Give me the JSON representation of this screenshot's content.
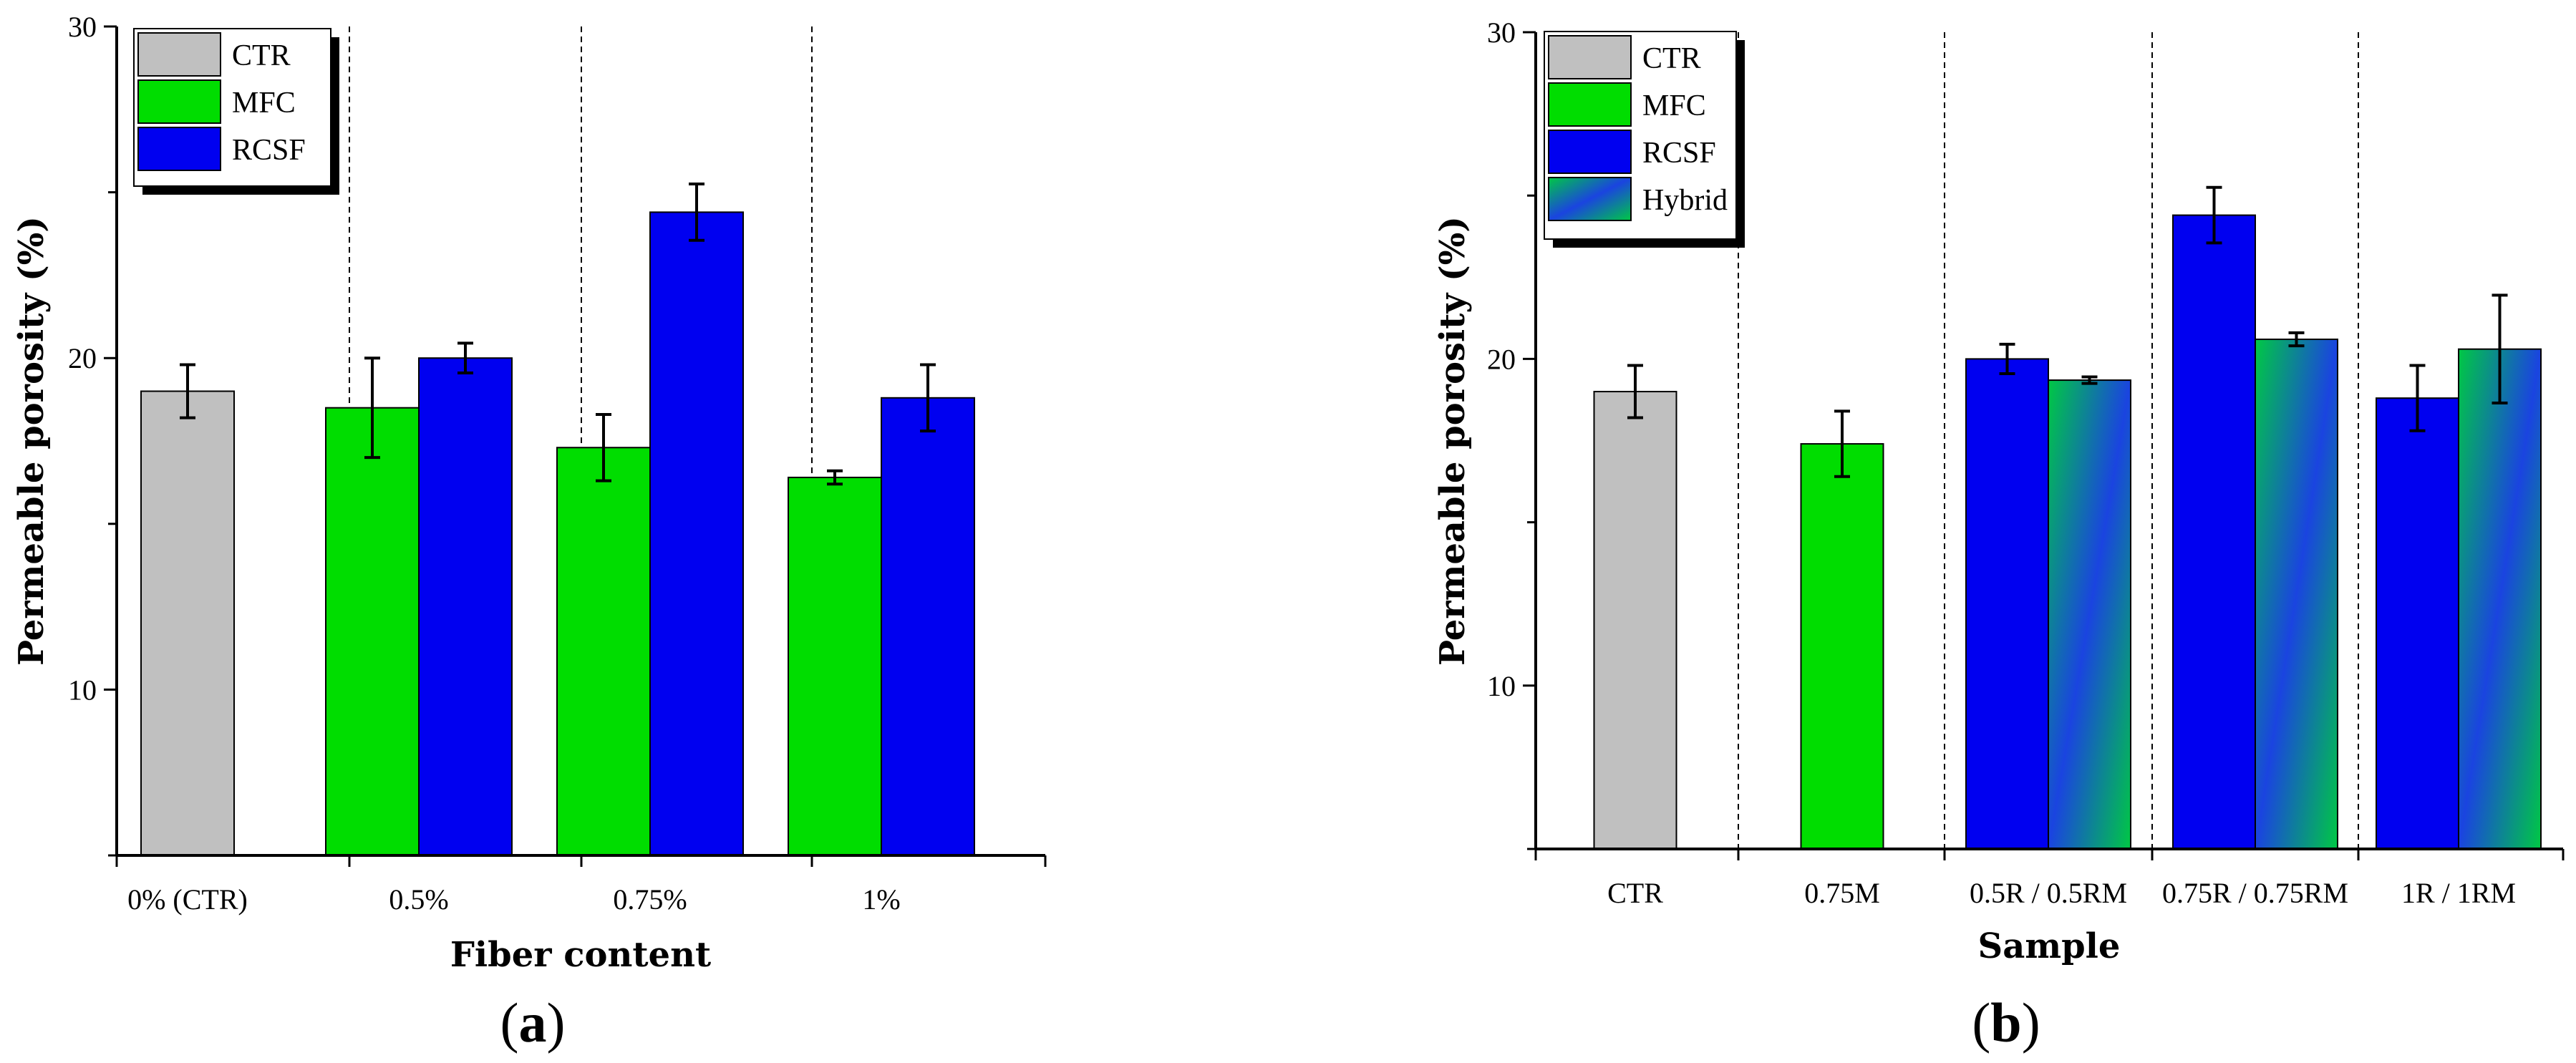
{
  "colors": {
    "CTR": "#c0c0c0",
    "MFC": "#00dd00",
    "RCSF": "#0000f0",
    "hybrid_a": "#00c844",
    "hybrid_b": "#1a44e0"
  },
  "chart_data": [
    {
      "type": "bar",
      "panel_label": "(a)",
      "panel_letter": "a",
      "xlabel": "Fiber content",
      "ylabel": "Permeable porosity (%)",
      "ylim": [
        5,
        30
      ],
      "yticks": [
        10,
        20,
        30
      ],
      "categories": [
        "0% (CTR)",
        "0.5%",
        "0.75%",
        "1%"
      ],
      "legend": {
        "placement": "top-left",
        "entries": [
          "CTR",
          "MFC",
          "RCSF"
        ]
      },
      "series": [
        {
          "name": "CTR",
          "values": [
            19.0,
            null,
            null,
            null
          ],
          "errors": [
            0.8,
            null,
            null,
            null
          ]
        },
        {
          "name": "MFC",
          "values": [
            null,
            18.5,
            17.3,
            16.4
          ],
          "errors": [
            null,
            1.5,
            1.0,
            0.2
          ]
        },
        {
          "name": "RCSF",
          "values": [
            null,
            20.0,
            24.4,
            18.8
          ],
          "errors": [
            null,
            0.45,
            0.85,
            1.0
          ]
        }
      ]
    },
    {
      "type": "bar",
      "panel_label": "(b)",
      "panel_letter": "b",
      "xlabel": "Sample",
      "ylabel": "Permeable porosity (%)",
      "ylim": [
        5,
        30
      ],
      "yticks": [
        10,
        20,
        30
      ],
      "categories": [
        "CTR",
        "0.75M",
        "0.5R / 0.5RM",
        "0.75R / 0.75RM",
        "1R / 1RM"
      ],
      "legend": {
        "placement": "top-left",
        "entries": [
          "CTR",
          "MFC",
          "RCSF",
          "Hybrid"
        ]
      },
      "series": [
        {
          "name": "CTR",
          "values": [
            19.0,
            null,
            null,
            null,
            null
          ],
          "errors": [
            0.8,
            null,
            null,
            null,
            null
          ]
        },
        {
          "name": "MFC",
          "values": [
            null,
            17.4,
            null,
            null,
            null
          ],
          "errors": [
            null,
            1.0,
            null,
            null,
            null
          ]
        },
        {
          "name": "RCSF",
          "values": [
            null,
            null,
            20.0,
            24.4,
            18.8
          ],
          "errors": [
            null,
            null,
            0.45,
            0.85,
            1.0
          ]
        },
        {
          "name": "Hybrid",
          "values": [
            null,
            null,
            19.35,
            20.6,
            20.3
          ],
          "errors": [
            null,
            null,
            0.1,
            0.2,
            1.65
          ]
        }
      ]
    }
  ]
}
